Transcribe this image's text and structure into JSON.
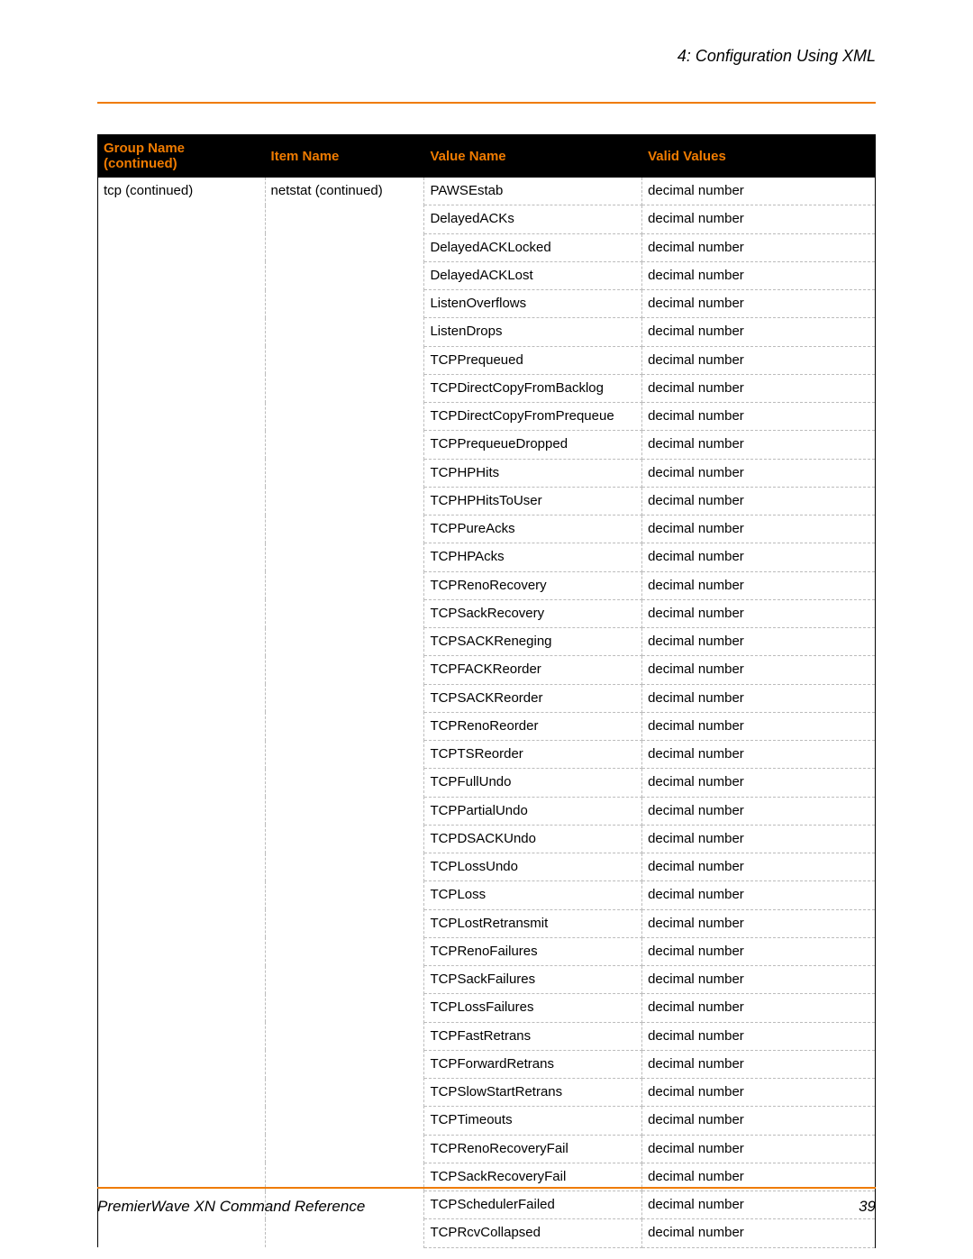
{
  "header": {
    "section_title": "4: Configuration Using XML"
  },
  "colors": {
    "accent": "#ef7b00",
    "header_bg": "#000000",
    "header_text": "#ef7b00",
    "rule": "#ef7b00",
    "dash": "#bcbcbc",
    "text": "#000000",
    "page_bg": "#ffffff"
  },
  "table": {
    "columns": [
      "Group Name (continued)",
      "Item Name",
      "Value Name",
      "Valid Values"
    ],
    "group_name": "tcp (continued)",
    "item_name": "netstat (continued)",
    "rows": [
      {
        "value_name": "PAWSEstab",
        "valid_values": "decimal number"
      },
      {
        "value_name": "DelayedACKs",
        "valid_values": "decimal number"
      },
      {
        "value_name": "DelayedACKLocked",
        "valid_values": "decimal number"
      },
      {
        "value_name": "DelayedACKLost",
        "valid_values": "decimal number"
      },
      {
        "value_name": "ListenOverflows",
        "valid_values": "decimal number"
      },
      {
        "value_name": "ListenDrops",
        "valid_values": "decimal number"
      },
      {
        "value_name": "TCPPrequeued",
        "valid_values": "decimal number"
      },
      {
        "value_name": "TCPDirectCopyFromBacklog",
        "valid_values": "decimal number"
      },
      {
        "value_name": "TCPDirectCopyFromPrequeue",
        "valid_values": "decimal number"
      },
      {
        "value_name": "TCPPrequeueDropped",
        "valid_values": "decimal number"
      },
      {
        "value_name": "TCPHPHits",
        "valid_values": "decimal number"
      },
      {
        "value_name": "TCPHPHitsToUser",
        "valid_values": "decimal number"
      },
      {
        "value_name": "TCPPureAcks",
        "valid_values": "decimal number"
      },
      {
        "value_name": "TCPHPAcks",
        "valid_values": "decimal number"
      },
      {
        "value_name": "TCPRenoRecovery",
        "valid_values": "decimal number"
      },
      {
        "value_name": "TCPSackRecovery",
        "valid_values": "decimal number"
      },
      {
        "value_name": "TCPSACKReneging",
        "valid_values": "decimal number"
      },
      {
        "value_name": "TCPFACKReorder",
        "valid_values": "decimal number"
      },
      {
        "value_name": "TCPSACKReorder",
        "valid_values": "decimal number"
      },
      {
        "value_name": "TCPRenoReorder",
        "valid_values": "decimal number"
      },
      {
        "value_name": "TCPTSReorder",
        "valid_values": "decimal number"
      },
      {
        "value_name": "TCPFullUndo",
        "valid_values": "decimal number"
      },
      {
        "value_name": "TCPPartialUndo",
        "valid_values": "decimal number"
      },
      {
        "value_name": "TCPDSACKUndo",
        "valid_values": "decimal number"
      },
      {
        "value_name": "TCPLossUndo",
        "valid_values": "decimal number"
      },
      {
        "value_name": "TCPLoss",
        "valid_values": "decimal number"
      },
      {
        "value_name": "TCPLostRetransmit",
        "valid_values": "decimal number"
      },
      {
        "value_name": "TCPRenoFailures",
        "valid_values": "decimal number"
      },
      {
        "value_name": "TCPSackFailures",
        "valid_values": "decimal number"
      },
      {
        "value_name": "TCPLossFailures",
        "valid_values": "decimal number"
      },
      {
        "value_name": "TCPFastRetrans",
        "valid_values": "decimal number"
      },
      {
        "value_name": "TCPForwardRetrans",
        "valid_values": "decimal number"
      },
      {
        "value_name": "TCPSlowStartRetrans",
        "valid_values": "decimal number"
      },
      {
        "value_name": "TCPTimeouts",
        "valid_values": "decimal number"
      },
      {
        "value_name": "TCPRenoRecoveryFail",
        "valid_values": "decimal number"
      },
      {
        "value_name": "TCPSackRecoveryFail",
        "valid_values": "decimal number"
      },
      {
        "value_name": "TCPSchedulerFailed",
        "valid_values": "decimal number"
      },
      {
        "value_name": "TCPRcvCollapsed",
        "valid_values": "decimal number"
      }
    ]
  },
  "footer": {
    "doc_title": "PremierWave XN Command Reference",
    "page_number": "39"
  }
}
